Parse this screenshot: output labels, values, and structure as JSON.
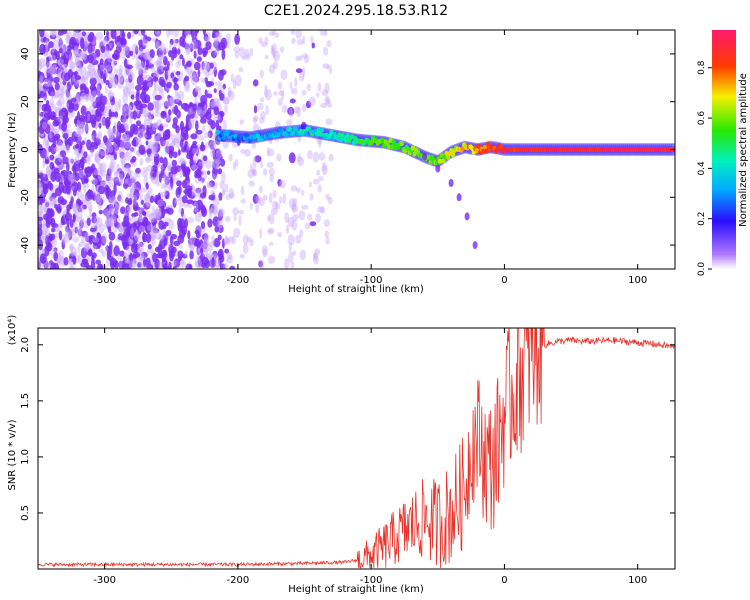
{
  "title": "C2E1.2024.295.18.53.R12",
  "colors": {
    "snr_line": "#e8332b",
    "scatter_main": "#7a2cf0",
    "scatter_light": "#c9a8fb",
    "background": "#ffffff"
  },
  "chart_data": [
    {
      "type": "heatmap",
      "title": "C2E1.2024.295.18.53.R12",
      "xlabel": "Height of straight line (km)",
      "ylabel": "Frequency (Hz)",
      "xlim": [
        -350,
        128
      ],
      "ylim": [
        -50,
        50
      ],
      "x_ticks": [
        -300,
        -200,
        -100,
        0,
        100
      ],
      "y_ticks": [
        -40,
        -20,
        0,
        20,
        40
      ],
      "colorbar": {
        "label": "Normalized spectral amplitude",
        "range": [
          0,
          0.95
        ],
        "ticks": [
          0.0,
          0.2,
          0.4,
          0.6,
          0.8
        ],
        "tick_labels": [
          "0.0",
          "0.2",
          "0.4",
          "0.6",
          "0.8"
        ],
        "colormap": "rainbow (magenta-blue-cyan-green-yellow-red-pink)"
      },
      "regions": [
        {
          "description": "noise",
          "x_range": [
            -350,
            -210
          ],
          "frequency_range": [
            -50,
            50
          ],
          "amplitude": 0.1
        },
        {
          "description": "faint noise",
          "x_range": [
            -210,
            -130
          ],
          "frequency_range": [
            -50,
            50
          ],
          "amplitude": 0.05
        },
        {
          "description": "signal track",
          "x_range": [
            -215,
            128
          ],
          "amplitude_range": [
            0.2,
            0.95
          ]
        }
      ],
      "signal_track": {
        "x": [
          -215,
          -190,
          -170,
          -150,
          -130,
          -110,
          -90,
          -75,
          -60,
          -50,
          -40,
          -30,
          -20,
          -10,
          0,
          30,
          60,
          90,
          128
        ],
        "frequency": [
          6,
          5,
          7,
          8,
          6,
          4,
          3,
          1,
          -3,
          -5,
          -1,
          1,
          0,
          1,
          0,
          0,
          0,
          0,
          0
        ],
        "amplitude": [
          0.3,
          0.3,
          0.35,
          0.4,
          0.4,
          0.5,
          0.55,
          0.55,
          0.6,
          0.6,
          0.65,
          0.7,
          0.75,
          0.8,
          0.85,
          0.9,
          0.9,
          0.92,
          0.9
        ]
      },
      "secondary_branch": {
        "x": [
          -60,
          -50,
          -40,
          -34,
          -28,
          -22
        ],
        "frequency": [
          -3,
          -8,
          -14,
          -20,
          -28,
          -40
        ]
      }
    },
    {
      "type": "line",
      "xlabel": "Height of straight line (km)",
      "ylabel": "SNR (10 * v/v)",
      "y_multiplier": "(x10⁴)",
      "xlim": [
        -350,
        128
      ],
      "ylim": [
        0,
        2.15
      ],
      "x_ticks": [
        -300,
        -200,
        -100,
        0,
        100
      ],
      "y_ticks": [
        0.5,
        1.0,
        1.5,
        2.0
      ],
      "y_tick_labels": [
        "0.5",
        "1.0",
        "1.5",
        "2.0"
      ],
      "series": [
        {
          "x": [
            -350,
            -300,
            -250,
            -200,
            -150,
            -120,
            -110,
            -100,
            -90,
            -80,
            -70,
            -60,
            -50,
            -40,
            -30,
            -25,
            -20,
            -15,
            -10,
            -5,
            0,
            10,
            20,
            30,
            40,
            50,
            60,
            80,
            100,
            110,
            128
          ],
          "y": [
            0.04,
            0.04,
            0.04,
            0.04,
            0.05,
            0.06,
            0.08,
            0.12,
            0.2,
            0.3,
            0.38,
            0.45,
            0.4,
            0.5,
            0.7,
            1.1,
            1.2,
            1.0,
            0.9,
            1.1,
            1.4,
            1.7,
            1.9,
            2.0,
            2.03,
            2.04,
            2.03,
            2.04,
            2.02,
            2.01,
            1.98
          ]
        }
      ]
    }
  ]
}
